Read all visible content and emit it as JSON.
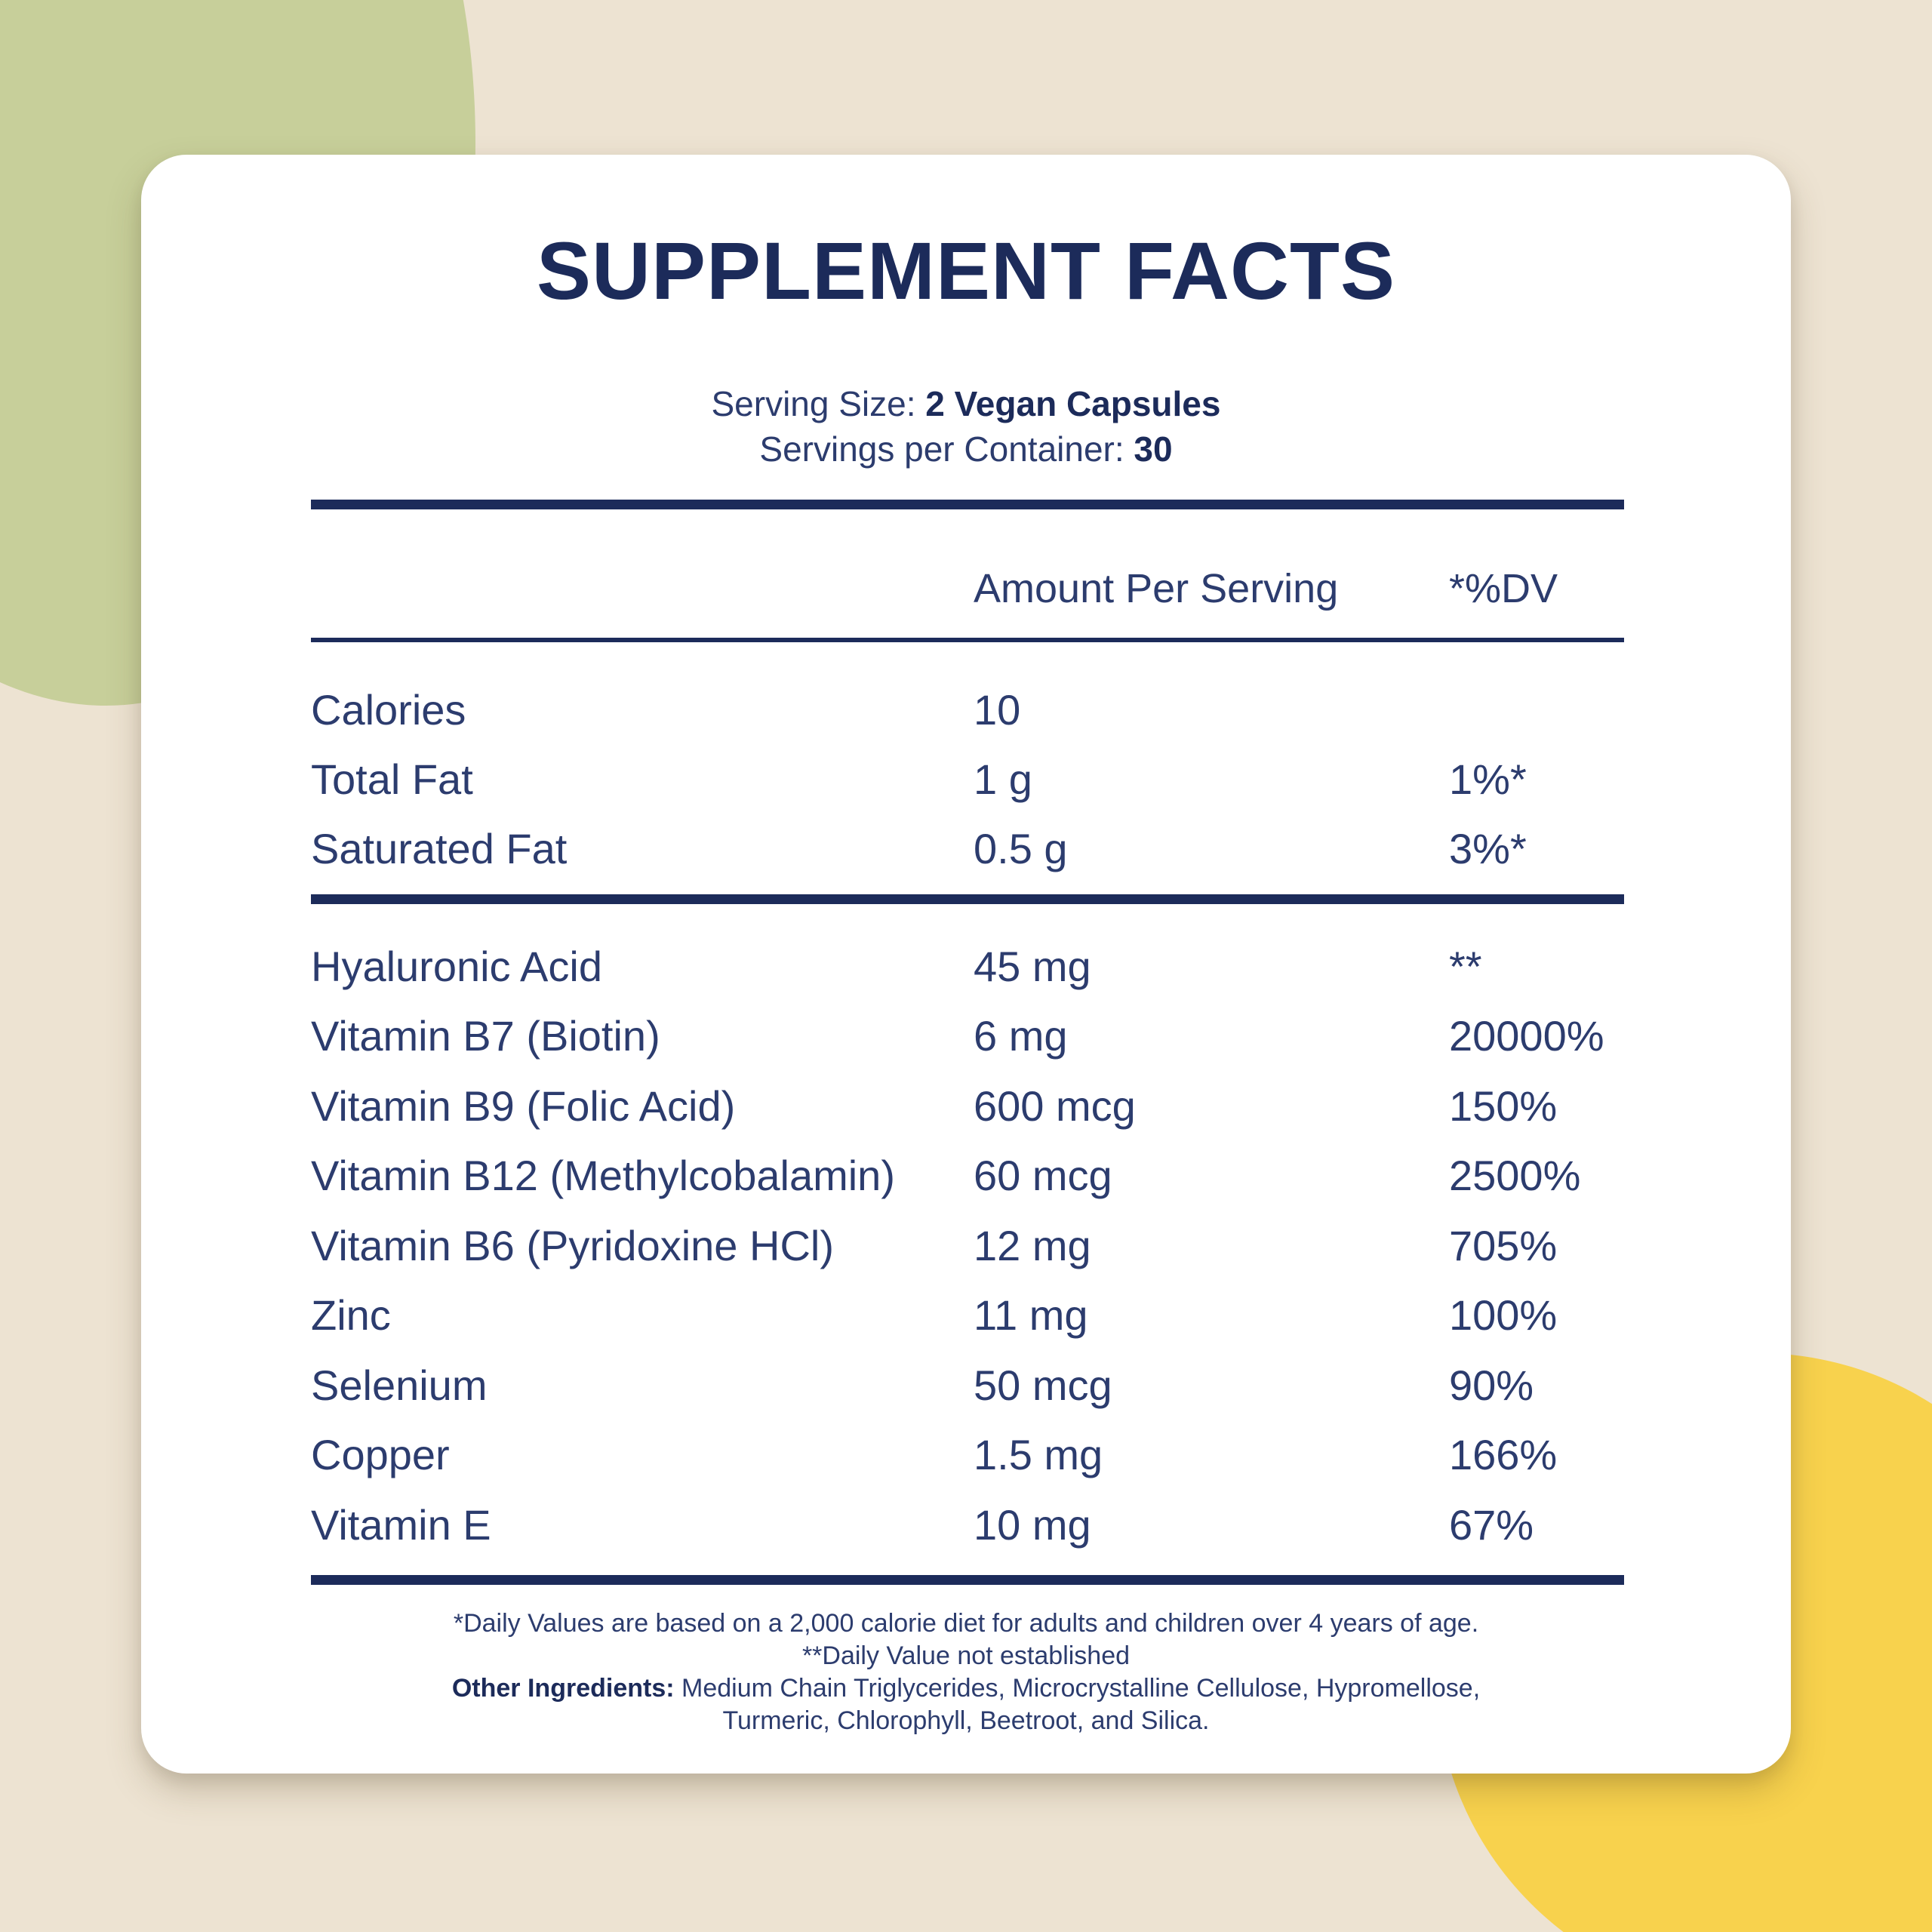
{
  "colors": {
    "background_beige": "#ede3d2",
    "blob_green": "#c7cf9a",
    "blob_yellow": "#f8d24d",
    "navy_dark": "#1c2b5a",
    "navy_text": "#2c3c6e",
    "card_white": "#ffffff"
  },
  "card": {
    "title": "SUPPLEMENT FACTS",
    "serving": {
      "size_label": "Serving Size: ",
      "size_value": "2 Vegan Capsules",
      "per_label": "Servings per Container: ",
      "per_value": "30"
    },
    "table": {
      "headers": {
        "amount": "Amount Per Serving",
        "dv": "*%DV"
      },
      "macro_rows": [
        {
          "label": "Calories",
          "amount": "10",
          "dv": ""
        },
        {
          "label": "Total Fat",
          "amount": "1 g",
          "dv": "1%*"
        },
        {
          "label": "Saturated Fat",
          "amount": "0.5 g",
          "dv": "3%*"
        }
      ],
      "nutrient_rows": [
        {
          "label": "Hyaluronic Acid",
          "amount": "45 mg",
          "dv": "**"
        },
        {
          "label": "Vitamin B7 (Biotin)",
          "amount": "6 mg",
          "dv": "20000%"
        },
        {
          "label": "Vitamin B9 (Folic Acid)",
          "amount": "600 mcg",
          "dv": "150%"
        },
        {
          "label": "Vitamin B12 (Methylcobalamin)",
          "amount": "60 mcg",
          "dv": "2500%"
        },
        {
          "label": "Vitamin B6 (Pyridoxine HCl)",
          "amount": "12 mg",
          "dv": "705%"
        },
        {
          "label": "Zinc",
          "amount": "11 mg",
          "dv": "100%"
        },
        {
          "label": "Selenium",
          "amount": "50 mcg",
          "dv": "90%"
        },
        {
          "label": "Copper",
          "amount": "1.5 mg",
          "dv": "166%"
        },
        {
          "label": "Vitamin E",
          "amount": "10 mg",
          "dv": "67%"
        }
      ]
    },
    "footnotes": {
      "line1": "*Daily Values are based on a 2,000 calorie diet for adults and children over 4 years of age.",
      "line2": "**Daily Value not established",
      "other_label": "Other Ingredients: ",
      "other_value": "Medium Chain Triglycerides, Microcrystalline Cellulose, Hypromellose, Turmeric, Chlorophyll, Beetroot, and Silica."
    }
  }
}
